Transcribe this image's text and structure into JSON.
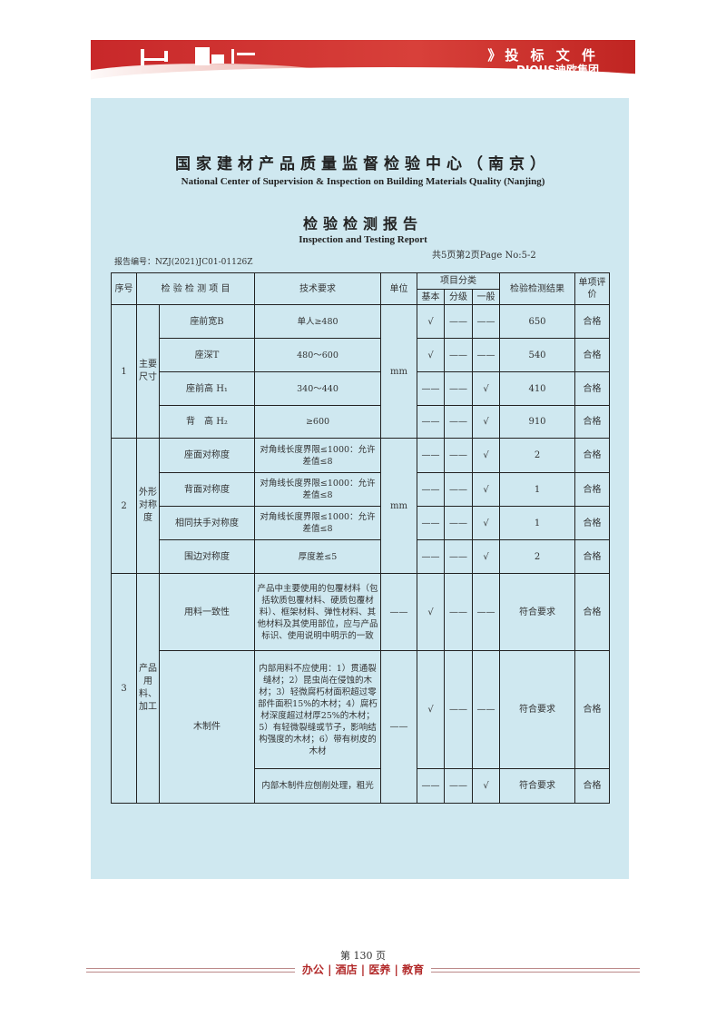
{
  "banner": {
    "title": "》投 标 文 件",
    "brand": "DIOUS迪欧集团",
    "accent": "#c8282a"
  },
  "doc": {
    "org_cn": "国家建材产品质量监督检验中心（南京）",
    "org_en": "National Center of Supervision & Inspection on Building Materials Quality (Nanjing)",
    "title_cn": "检验检测报告",
    "title_en": "Inspection and Testing Report",
    "page_info": "共5页第2页Page No:5-2",
    "report_no": "报告编号：NZJ(2021)JC01-01126Z"
  },
  "table": {
    "headers": {
      "no": "序号",
      "item": "检 验 检 测 项 目",
      "tech": "技术要求",
      "unit": "单位",
      "category": "项目分类",
      "basic": "基本",
      "grade": "分级",
      "general": "一般",
      "result": "检验检测结果",
      "eval": "单项评价"
    },
    "groups": [
      {
        "no": "1",
        "name": "主要尺寸",
        "unit": "mm",
        "rows": [
          {
            "item": "座前宽B",
            "tech": "单人≥480",
            "basic": "√",
            "grade": "——",
            "general": "——",
            "result": "650",
            "eval": "合格"
          },
          {
            "item": "座深T",
            "tech": "480～600",
            "basic": "√",
            "grade": "——",
            "general": "——",
            "result": "540",
            "eval": "合格"
          },
          {
            "item": "座前高 H₁",
            "tech": "340～440",
            "basic": "——",
            "grade": "——",
            "general": "√",
            "result": "410",
            "eval": "合格"
          },
          {
            "item": "背　高 H₂",
            "tech": "≥600",
            "basic": "——",
            "grade": "——",
            "general": "√",
            "result": "910",
            "eval": "合格"
          }
        ]
      },
      {
        "no": "2",
        "name": "外形对称度",
        "unit": "mm",
        "rows": [
          {
            "item": "座面对称度",
            "tech": "对角线长度界限≤1000：允许差值≤8",
            "basic": "——",
            "grade": "——",
            "general": "√",
            "result": "2",
            "eval": "合格"
          },
          {
            "item": "背面对称度",
            "tech": "对角线长度界限≤1000：允许差值≤8",
            "basic": "——",
            "grade": "——",
            "general": "√",
            "result": "1",
            "eval": "合格"
          },
          {
            "item": "相同扶手对称度",
            "tech": "对角线长度界限≤1000：允许差值≤8",
            "basic": "——",
            "grade": "——",
            "general": "√",
            "result": "1",
            "eval": "合格"
          },
          {
            "item": "围边对称度",
            "tech": "厚度差≤5",
            "basic": "——",
            "grade": "——",
            "general": "√",
            "result": "2",
            "eval": "合格"
          }
        ]
      },
      {
        "no": "3",
        "name": "产品用料、加工",
        "rows": [
          {
            "item": "用料一致性",
            "tech": "产品中主要使用的包覆材料（包括软质包覆材料、硬质包覆材料）、框架材料、弹性材料、其他材料及其使用部位，应与产品标识、使用说明中明示的一致",
            "unit": "——",
            "basic": "√",
            "grade": "——",
            "general": "——",
            "result": "符合要求",
            "eval": "合格"
          },
          {
            "item": "木制件",
            "tech": "内部用料不应使用：1）贯通裂缝材；2）昆虫尚在侵蚀的木材；3）轻微腐朽材面积超过零部件面积15%的木材；4）腐朽材深度超过材厚25%的木材； 5）有轻微裂缝或节子，影响结构强度的木材；6）带有树皮的木材",
            "unit": "——",
            "basic": "√",
            "grade": "——",
            "general": "——",
            "result": "符合要求",
            "eval": "合格"
          },
          {
            "tech": "内部木制件应刨削处理，粗光",
            "basic": "——",
            "grade": "——",
            "general": "√",
            "result": "符合要求",
            "eval": "合格"
          }
        ]
      }
    ]
  },
  "footer": {
    "page": "第 130 页",
    "slogan": "办公 | 酒店 | 医养 | 教育"
  }
}
